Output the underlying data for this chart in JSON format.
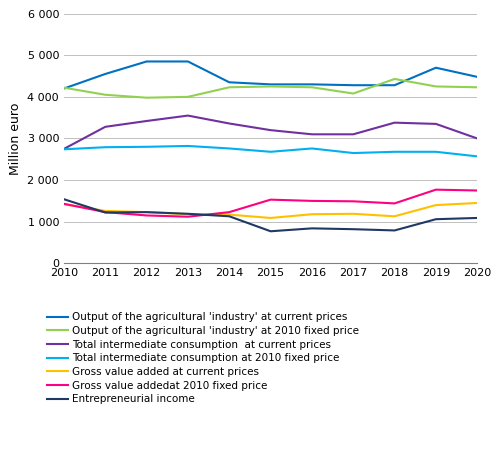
{
  "years": [
    2010,
    2011,
    2012,
    2013,
    2014,
    2015,
    2016,
    2017,
    2018,
    2019,
    2020
  ],
  "series": [
    {
      "label": "Output of the agricultural 'industry' at current prices",
      "color": "#0070c0",
      "values": [
        4200,
        4550,
        4850,
        4850,
        4350,
        4300,
        4300,
        4280,
        4280,
        4700,
        4480
      ]
    },
    {
      "label": "Output of the agricultural 'industry' at 2010 fixed price",
      "color": "#92d050",
      "values": [
        4220,
        4050,
        3980,
        4000,
        4230,
        4250,
        4230,
        4080,
        4430,
        4250,
        4230
      ]
    },
    {
      "label": "Total intermediate consumption  at current prices",
      "color": "#7030a0",
      "values": [
        2750,
        3280,
        3420,
        3550,
        3360,
        3200,
        3100,
        3100,
        3380,
        3350,
        3000
      ]
    },
    {
      "label": "Total intermediate consumption at 2010 fixed price",
      "color": "#00b0f0",
      "values": [
        2740,
        2790,
        2800,
        2820,
        2760,
        2680,
        2760,
        2650,
        2680,
        2680,
        2570
      ]
    },
    {
      "label": "Gross value added at current prices",
      "color": "#ffc000",
      "values": [
        1420,
        1260,
        1230,
        1180,
        1170,
        1090,
        1180,
        1190,
        1130,
        1400,
        1450
      ]
    },
    {
      "label": "Gross value addedat 2010 fixed price",
      "color": "#ff0080",
      "values": [
        1430,
        1230,
        1150,
        1120,
        1230,
        1530,
        1500,
        1490,
        1440,
        1770,
        1750
      ]
    },
    {
      "label": "Entrepreneurial income",
      "color": "#1f3864",
      "values": [
        1540,
        1220,
        1230,
        1190,
        1130,
        770,
        840,
        820,
        790,
        1060,
        1090
      ]
    }
  ],
  "ylim": [
    0,
    6000
  ],
  "yticks": [
    0,
    1000,
    2000,
    3000,
    4000,
    5000,
    6000
  ],
  "ytick_labels": [
    "0",
    "1 000",
    "2 000",
    "3 000",
    "4 000",
    "5 000",
    "6 000"
  ],
  "ylabel": "Million euro",
  "background_color": "#ffffff",
  "grid_color": "#c0c0c0"
}
